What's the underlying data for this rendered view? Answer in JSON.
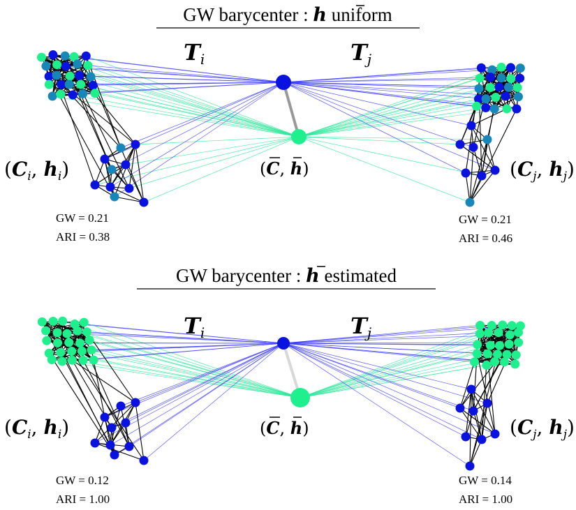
{
  "panels": [
    {
      "title_prefix": "GW barycenter : ",
      "title_sym": "h",
      "title_suffix": " uniform",
      "transport_left": {
        "sym": "T",
        "sub": "i"
      },
      "transport_right": {
        "sym": "T",
        "sub": "j"
      },
      "graph_left": {
        "C": "C",
        "h": "h",
        "sub": "i"
      },
      "graph_right": {
        "C": "C",
        "h": "h",
        "sub": "j"
      },
      "barycenter": {
        "C": "C",
        "h": "h"
      },
      "metrics_left": {
        "gw": "GW = 0.21",
        "ari": "ARI = 0.38"
      },
      "metrics_right": {
        "gw": "GW = 0.21",
        "ari": "ARI = 0.46"
      }
    },
    {
      "title_prefix": "GW barycenter : ",
      "title_sym": "h",
      "title_suffix": " estimated",
      "transport_left": {
        "sym": "T",
        "sub": "i"
      },
      "transport_right": {
        "sym": "T",
        "sub": "j"
      },
      "graph_left": {
        "C": "C",
        "h": "h",
        "sub": "i"
      },
      "graph_right": {
        "C": "C",
        "h": "h",
        "sub": "j"
      },
      "barycenter": {
        "C": "C",
        "h": "h"
      },
      "metrics_left": {
        "gw": "GW = 0.12",
        "ari": "ARI = 1.00"
      },
      "metrics_right": {
        "gw": "GW = 0.14",
        "ari": "ARI = 1.00"
      }
    }
  ],
  "colors": {
    "cluster_blue": "#0a12e0",
    "cluster_green": "#1ff08e",
    "mixed_teal": "#1786b8",
    "edge_black": "#000000",
    "transport_blue": "#3a3aff",
    "transport_green": "#2ee89a"
  }
}
